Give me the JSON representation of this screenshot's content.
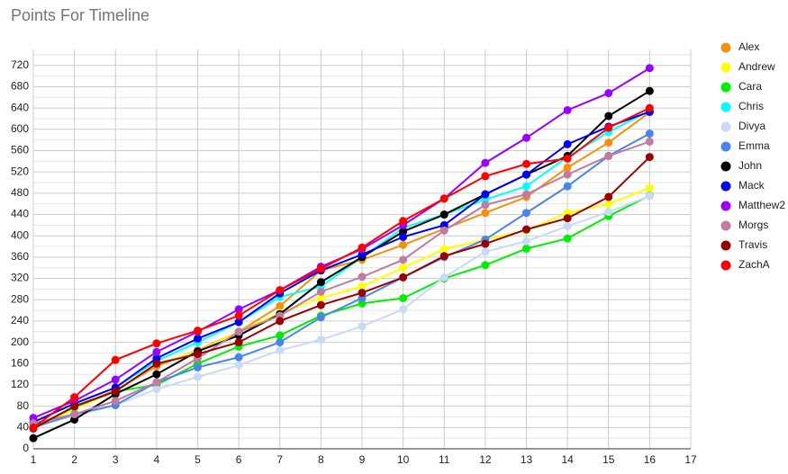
{
  "chart_data": {
    "type": "line",
    "title": "Points For Timeline",
    "x": [
      1,
      2,
      3,
      4,
      5,
      6,
      7,
      8,
      9,
      10,
      11,
      12,
      13,
      14,
      15,
      16
    ],
    "xlim": [
      1,
      17
    ],
    "xticks": [
      1,
      2,
      3,
      4,
      5,
      6,
      7,
      8,
      9,
      10,
      11,
      12,
      13,
      14,
      15,
      16,
      17
    ],
    "ylim": [
      0,
      750
    ],
    "yticks": [
      0,
      40,
      80,
      120,
      160,
      200,
      240,
      280,
      320,
      360,
      400,
      440,
      480,
      520,
      560,
      600,
      640,
      680,
      720
    ],
    "grid": true,
    "legend": "right",
    "series": [
      {
        "name": "Alex",
        "color": "#f4900c",
        "values": [
          40,
          78,
          110,
          155,
          185,
          220,
          268,
          335,
          355,
          383,
          413,
          443,
          473,
          528,
          575,
          632
        ]
      },
      {
        "name": "Andrew",
        "color": "#ffff00",
        "values": [
          38,
          75,
          108,
          160,
          183,
          220,
          255,
          283,
          305,
          340,
          375,
          393,
          410,
          443,
          460,
          490
        ]
      },
      {
        "name": "Cara",
        "color": "#00ee00",
        "values": [
          40,
          78,
          108,
          120,
          160,
          192,
          213,
          250,
          273,
          283,
          320,
          345,
          376,
          395,
          437,
          476
        ]
      },
      {
        "name": "Chris",
        "color": "#00ffff",
        "values": [
          50,
          85,
          115,
          165,
          200,
          238,
          285,
          305,
          360,
          415,
          440,
          468,
          493,
          548,
          595,
          635
        ]
      },
      {
        "name": "Divya",
        "color": "#c9daf8",
        "values": [
          42,
          62,
          82,
          112,
          135,
          157,
          185,
          205,
          230,
          262,
          322,
          370,
          390,
          418,
          445,
          475
        ]
      },
      {
        "name": "Emma",
        "color": "#4a86e8",
        "values": [
          40,
          65,
          82,
          125,
          153,
          172,
          200,
          247,
          283,
          322,
          360,
          393,
          443,
          493,
          550,
          592
        ]
      },
      {
        "name": "John",
        "color": "#000000",
        "values": [
          20,
          55,
          103,
          140,
          183,
          213,
          253,
          313,
          360,
          408,
          440,
          478,
          515,
          550,
          625,
          672
        ]
      },
      {
        "name": "Mack",
        "color": "#0000ee",
        "values": [
          50,
          85,
          115,
          170,
          207,
          238,
          292,
          335,
          365,
          398,
          420,
          478,
          515,
          572,
          605,
          633
        ]
      },
      {
        "name": "Matthew2",
        "color": "#9900ff",
        "values": [
          58,
          90,
          130,
          182,
          220,
          262,
          298,
          342,
          375,
          420,
          470,
          537,
          584,
          636,
          668,
          715
        ]
      },
      {
        "name": "Morgs",
        "color": "#c27ba0",
        "values": [
          48,
          65,
          90,
          125,
          170,
          220,
          250,
          295,
          323,
          355,
          410,
          458,
          478,
          515,
          550,
          577
        ]
      },
      {
        "name": "Travis",
        "color": "#990000",
        "values": [
          38,
          80,
          108,
          160,
          178,
          200,
          240,
          270,
          293,
          322,
          362,
          385,
          412,
          433,
          473,
          548
        ]
      },
      {
        "name": "ZachA",
        "color": "#ff0000",
        "values": [
          40,
          97,
          167,
          198,
          222,
          250,
          298,
          338,
          378,
          428,
          470,
          512,
          535,
          545,
          603,
          640
        ]
      }
    ]
  }
}
